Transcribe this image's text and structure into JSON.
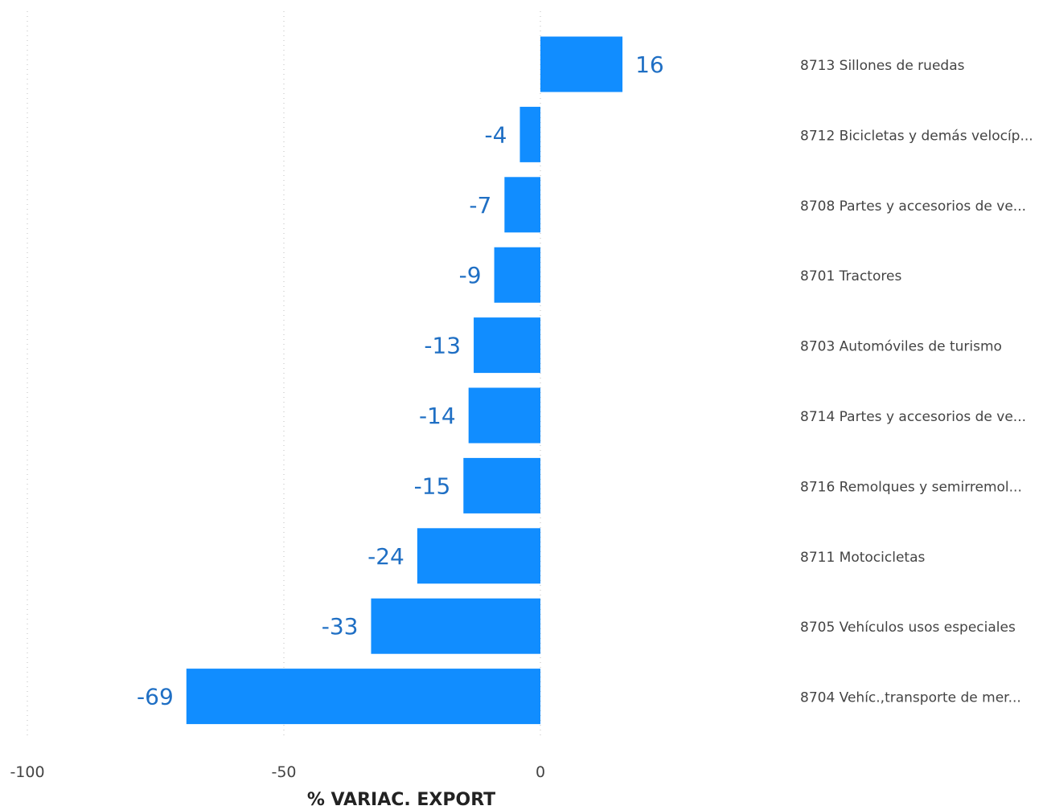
{
  "chart_data": {
    "type": "bar",
    "orientation": "horizontal",
    "xlabel": "% VARIAC. EXPORT",
    "xlim": [
      -100,
      20
    ],
    "xticks": [
      -100,
      -50,
      0
    ],
    "grid": true,
    "bar_color": "#118DFF",
    "label_color": "#1F6FC4",
    "categories": [
      "8713 Sillones de ruedas",
      "8712 Bicicletas y demás velocíp...",
      "8708 Partes y accesorios de ve...",
      "8701 Tractores",
      "8703 Automóviles de turismo",
      "8714 Partes y accesorios de ve...",
      "8716 Remolques y semirremol...",
      "8711 Motocicletas",
      "8705 Vehículos usos especiales",
      "8704 Vehíc.,transporte de mer..."
    ],
    "values": [
      16,
      -4,
      -7,
      -9,
      -13,
      -14,
      -15,
      -24,
      -33,
      -69
    ]
  }
}
